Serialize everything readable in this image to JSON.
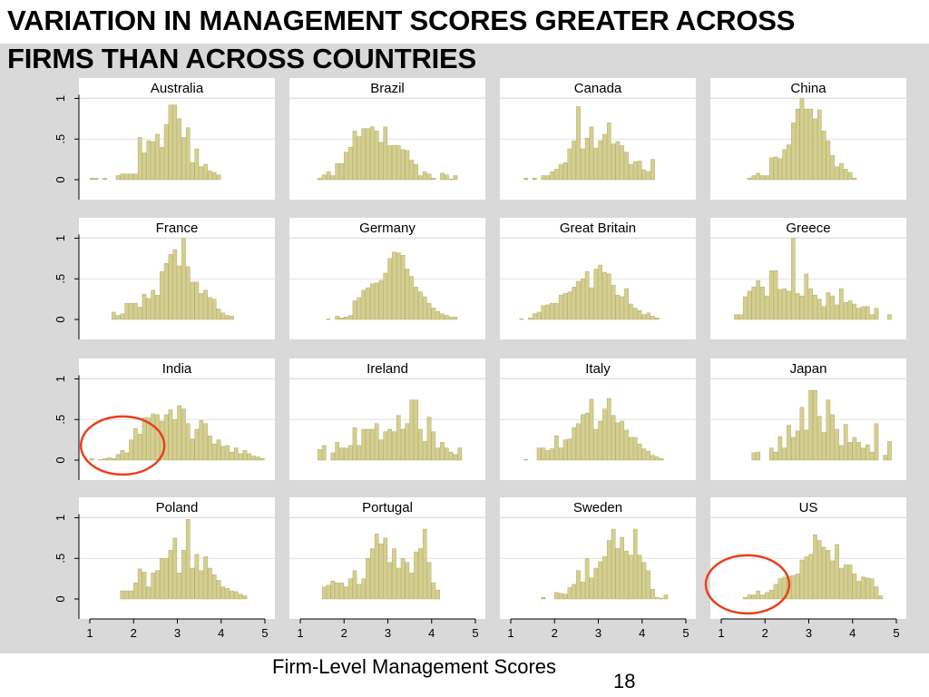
{
  "slide": {
    "title_line1": "VARIATION IN MANAGEMENT SCORES GREATER ACROSS",
    "title_line2": "FIRMS THAN ACROSS COUNTRIES",
    "x_axis_label": "Firm-Level Management Scores",
    "page_number": "18"
  },
  "colors": {
    "bar_fill": "#d4cf8f",
    "bar_stroke": "#a9a25a",
    "circle": "#e8401c",
    "panel_bg": "#ffffff",
    "figure_bg": "#d9d9d9"
  },
  "chart_data": {
    "type": "bar",
    "layout": "small-multiples-histogram",
    "xlim": [
      1,
      5
    ],
    "ylim": [
      0,
      1.05
    ],
    "x_ticks": [
      "1",
      "2",
      "3",
      "4",
      "5"
    ],
    "y_ticks": [
      "0",
      ".5",
      "1"
    ],
    "bin_start": 1.0,
    "bin_width": 0.1,
    "panels": [
      {
        "name": "Australia",
        "values": [
          0.02,
          0.02,
          0,
          0.02,
          0,
          0,
          0.05,
          0.07,
          0.07,
          0.07,
          0.07,
          0.52,
          0.33,
          0.48,
          0.47,
          0.56,
          0.4,
          0.68,
          0.92,
          0.92,
          0.75,
          0.52,
          0.64,
          0.21,
          0.38,
          0.16,
          0.19,
          0.11,
          0.09,
          0.06,
          0,
          0,
          0,
          0,
          0,
          0,
          0,
          0,
          0,
          0
        ]
      },
      {
        "name": "Brazil",
        "values": [
          0,
          0,
          0,
          0,
          0.02,
          0.06,
          0.1,
          0.05,
          0.2,
          0.2,
          0.34,
          0.4,
          0.6,
          0.53,
          0.63,
          0.63,
          0.65,
          0.6,
          0.46,
          0.65,
          0.42,
          0.42,
          0.42,
          0.37,
          0.36,
          0.24,
          0.19,
          0.05,
          0.1,
          0.07,
          0.02,
          0,
          0.08,
          0.06,
          0.01,
          0.05,
          0,
          0,
          0,
          0
        ]
      },
      {
        "name": "Canada",
        "values": [
          0,
          0,
          0,
          0.02,
          0,
          0.02,
          0,
          0.05,
          0.05,
          0.1,
          0.13,
          0.19,
          0.21,
          0.38,
          0.48,
          0.9,
          0.38,
          0.51,
          0.65,
          0.39,
          0.48,
          0.56,
          0.7,
          0.44,
          0.47,
          0.42,
          0.34,
          0.19,
          0.22,
          0.23,
          0.12,
          0.1,
          0.25,
          0,
          0,
          0,
          0,
          0,
          0,
          0
        ]
      },
      {
        "name": "China",
        "values": [
          0,
          0,
          0,
          0,
          0,
          0,
          0.02,
          0.05,
          0.08,
          0.05,
          0.05,
          0.27,
          0.28,
          0.26,
          0.37,
          0.43,
          0.7,
          0.87,
          1.0,
          0.87,
          0.87,
          0.75,
          0.86,
          0.6,
          0.48,
          0.3,
          0.16,
          0.2,
          0.13,
          0.09,
          0.02,
          0,
          0,
          0,
          0,
          0,
          0,
          0,
          0,
          0
        ]
      },
      {
        "name": "France",
        "values": [
          0,
          0,
          0,
          0,
          0,
          0.09,
          0.05,
          0.07,
          0.2,
          0.2,
          0.2,
          0.15,
          0.31,
          0.26,
          0.36,
          0.3,
          0.59,
          0.69,
          0.8,
          0.86,
          0.66,
          1.0,
          0.65,
          0.46,
          0.46,
          0.32,
          0.36,
          0.27,
          0.25,
          0.13,
          0.08,
          0.05,
          0.04,
          0,
          0,
          0,
          0,
          0,
          0,
          0
        ]
      },
      {
        "name": "Germany",
        "values": [
          0,
          0,
          0,
          0,
          0,
          0,
          0.01,
          0,
          0.04,
          0.02,
          0.03,
          0.05,
          0.23,
          0.27,
          0.36,
          0.39,
          0.44,
          0.45,
          0.48,
          0.57,
          0.75,
          0.83,
          0.82,
          0.79,
          0.62,
          0.53,
          0.4,
          0.34,
          0.28,
          0.2,
          0.14,
          0.1,
          0.07,
          0.05,
          0.03,
          0.03,
          0,
          0,
          0,
          0
        ]
      },
      {
        "name": "Great Britain",
        "values": [
          0,
          0,
          0.01,
          0,
          0.02,
          0.07,
          0.09,
          0.17,
          0.18,
          0.2,
          0.2,
          0.3,
          0.32,
          0.34,
          0.4,
          0.47,
          0.5,
          0.59,
          0.39,
          0.62,
          0.67,
          0.58,
          0.56,
          0.42,
          0.3,
          0.28,
          0.38,
          0.19,
          0.14,
          0.11,
          0.06,
          0.08,
          0.04,
          0.02,
          0,
          0,
          0,
          0,
          0,
          0
        ]
      },
      {
        "name": "Greece",
        "values": [
          0,
          0,
          0,
          0.06,
          0.06,
          0.28,
          0.35,
          0.4,
          0.48,
          0.4,
          0.29,
          0.6,
          0.6,
          0.37,
          0.38,
          0.35,
          1.0,
          0.32,
          0.29,
          0.56,
          0.38,
          0.3,
          0.25,
          0.16,
          0.33,
          0.29,
          0.18,
          0.38,
          0.21,
          0.23,
          0.19,
          0.14,
          0.16,
          0.16,
          0.06,
          0.14,
          0,
          0,
          0.06,
          0
        ]
      },
      {
        "name": "India",
        "values": [
          0.02,
          0,
          0.01,
          0.02,
          0.03,
          0.02,
          0.07,
          0.12,
          0.09,
          0.25,
          0.39,
          0.32,
          0.52,
          0.52,
          0.57,
          0.56,
          0.48,
          0.56,
          0.62,
          0.5,
          0.67,
          0.63,
          0.45,
          0.26,
          0.38,
          0.49,
          0.45,
          0.3,
          0.2,
          0.25,
          0.17,
          0.18,
          0.1,
          0.15,
          0.08,
          0.12,
          0.08,
          0.05,
          0.04,
          0.02
        ]
      },
      {
        "name": "Ireland",
        "values": [
          0,
          0,
          0,
          0,
          0.13,
          0.18,
          0,
          0.09,
          0.22,
          0.15,
          0.15,
          0.18,
          0.4,
          0.18,
          0.38,
          0.38,
          0.38,
          0.45,
          0.25,
          0.35,
          0.38,
          0.35,
          0.55,
          0.38,
          0.45,
          0.74,
          0.74,
          0.38,
          0.23,
          0.53,
          0.35,
          0.15,
          0.22,
          0.15,
          0.1,
          0.07,
          0.15,
          0,
          0,
          0
        ]
      },
      {
        "name": "Italy",
        "values": [
          0,
          0,
          0,
          0.01,
          0,
          0,
          0.15,
          0.15,
          0.12,
          0.14,
          0.3,
          0.15,
          0.25,
          0.26,
          0.4,
          0.45,
          0.56,
          0.58,
          0.75,
          0.38,
          0.48,
          0.63,
          0.76,
          0.55,
          0.46,
          0.48,
          0.37,
          0.28,
          0.28,
          0.2,
          0.14,
          0.11,
          0.06,
          0.04,
          0.02,
          0,
          0,
          0,
          0,
          0
        ]
      },
      {
        "name": "Japan",
        "values": [
          0,
          0,
          0,
          0,
          0,
          0,
          0,
          0.09,
          0.1,
          0,
          0,
          0.15,
          0.1,
          0.29,
          0.15,
          0.43,
          0.28,
          0.36,
          0.65,
          0.37,
          0.86,
          0.86,
          0.54,
          0.34,
          0.74,
          0.56,
          0.38,
          0.18,
          0.44,
          0.22,
          0.28,
          0.22,
          0.15,
          0.19,
          0.1,
          0.45,
          0,
          0.06,
          0.23,
          0
        ]
      },
      {
        "name": "Poland",
        "values": [
          0,
          0,
          0,
          0,
          0,
          0,
          0,
          0.1,
          0.1,
          0.1,
          0.2,
          0.37,
          0.33,
          0.15,
          0.32,
          0.35,
          0.5,
          0.5,
          0.6,
          0.75,
          0.32,
          0.6,
          0.98,
          0.38,
          0.55,
          0.35,
          0.52,
          0.38,
          0.3,
          0.23,
          0.15,
          0.13,
          0.1,
          0.09,
          0.06,
          0.04,
          0,
          0,
          0,
          0
        ]
      },
      {
        "name": "Portugal",
        "values": [
          0,
          0,
          0,
          0,
          0,
          0.15,
          0.17,
          0.22,
          0.2,
          0.2,
          0.15,
          0.25,
          0.35,
          0.18,
          0.25,
          0.5,
          0.62,
          0.8,
          0.68,
          0.75,
          0.45,
          0.62,
          0.38,
          0.5,
          0.45,
          0.32,
          0.58,
          0.62,
          0.86,
          0.45,
          0.2,
          0.11,
          0,
          0,
          0,
          0,
          0,
          0,
          0,
          0
        ]
      },
      {
        "name": "Sweden",
        "values": [
          0,
          0,
          0,
          0,
          0,
          0,
          0,
          0.02,
          0,
          0,
          0.08,
          0.07,
          0.06,
          0.14,
          0.18,
          0.35,
          0.21,
          0.5,
          0.26,
          0.38,
          0.46,
          0.52,
          0.72,
          0.86,
          0.62,
          0.76,
          0.59,
          0.54,
          0.86,
          0.54,
          0.45,
          0.35,
          0.12,
          0.02,
          0.01,
          0.05,
          0,
          0,
          0,
          0
        ]
      },
      {
        "name": "US",
        "values": [
          0,
          0,
          0,
          0,
          0,
          0.02,
          0.05,
          0.05,
          0.1,
          0.05,
          0.08,
          0.11,
          0.18,
          0.25,
          0.27,
          0.28,
          0.29,
          0.31,
          0.48,
          0.52,
          0.55,
          0.79,
          0.72,
          0.64,
          0.6,
          0.47,
          0.67,
          0.38,
          0.42,
          0.42,
          0.31,
          0.22,
          0.27,
          0.26,
          0.25,
          0.15,
          0.04,
          0,
          0,
          0
        ]
      }
    ],
    "highlights": [
      {
        "panel": "India",
        "x_center": 1.75,
        "y_center": 0.18,
        "note": "red circle around low-score tail"
      },
      {
        "panel": "US",
        "x_center": 1.6,
        "y_center": 0.18,
        "note": "red circle around low-score tail"
      }
    ]
  }
}
